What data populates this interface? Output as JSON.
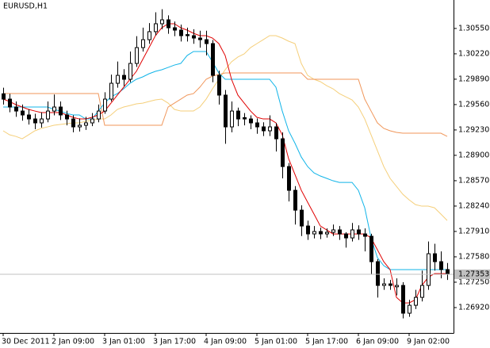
{
  "chart_data": {
    "type": "candlestick",
    "title": "EURUSD,H1",
    "categories": [
      "30 Dec 2011",
      null,
      null,
      null,
      null,
      null,
      null,
      null,
      "2 Jan 09:00",
      null,
      null,
      null,
      null,
      null,
      null,
      null,
      "3 Jan 01:00",
      null,
      null,
      null,
      null,
      null,
      null,
      null,
      "3 Jan 17:00",
      null,
      null,
      null,
      null,
      null,
      null,
      null,
      "4 Jan 09:00",
      null,
      null,
      null,
      null,
      null,
      null,
      null,
      "5 Jan 01:00",
      null,
      null,
      null,
      null,
      null,
      null,
      null,
      "5 Jan 17:00",
      null,
      null,
      null,
      null,
      null,
      null,
      null,
      "6 Jan 09:00",
      null,
      null,
      null,
      null,
      null,
      null,
      null,
      "9 Jan 02:00",
      null,
      null,
      null,
      null,
      null,
      null
    ],
    "ohlc": {
      "open": [
        1.297,
        1.29631,
        1.29528,
        1.29476,
        1.29425,
        1.29373,
        1.29322,
        1.29373,
        1.29476,
        1.29528,
        1.29425,
        1.29373,
        1.2927,
        1.29291,
        1.29322,
        1.29373,
        1.29476,
        1.29631,
        1.29837,
        1.2994,
        1.29889,
        1.30095,
        1.30301,
        1.30404,
        1.30508,
        1.30611,
        1.30662,
        1.30559,
        1.30528,
        1.3047,
        1.30456,
        1.30425,
        1.30404,
        1.30353,
        1.2994,
        1.29683,
        1.2927,
        1.29476,
        1.2939,
        1.29373,
        1.29322,
        1.2927,
        1.29219,
        1.2927,
        1.29115,
        1.28754,
        1.28445,
        1.28187,
        1.27981,
        1.27878,
        1.27909,
        1.27878,
        1.27899,
        1.2793,
        1.27878,
        1.27826,
        1.2793,
        1.27878,
        1.27847,
        1.27517,
        1.27208,
        1.27228,
        1.2719,
        1.27208,
        1.26847,
        1.2695,
        1.27053,
        1.27208,
        1.2762,
        1.27517,
        1.27414
      ],
      "high": [
        1.2978,
        1.297,
        1.296,
        1.2956,
        1.295,
        1.2944,
        1.2946,
        1.296,
        1.2969,
        1.296,
        1.2948,
        1.2942,
        1.2938,
        1.294,
        1.2945,
        1.2956,
        1.2972,
        1.2995,
        1.3012,
        1.3002,
        1.3025,
        1.3045,
        1.3056,
        1.3062,
        1.3076,
        1.308,
        1.3072,
        1.3064,
        1.306,
        1.3056,
        1.3054,
        1.3052,
        1.3052,
        1.304,
        1.3,
        1.2975,
        1.296,
        1.2952,
        1.2945,
        1.2942,
        1.2938,
        1.2933,
        1.2942,
        1.2932,
        1.292,
        1.288,
        1.285,
        1.2825,
        1.2805,
        1.2798,
        1.2796,
        1.2795,
        1.28,
        1.2798,
        1.279,
        1.2802,
        1.2799,
        1.2795,
        1.2788,
        1.2755,
        1.273,
        1.2728,
        1.273,
        1.2725,
        1.2702,
        1.2715,
        1.274,
        1.2778,
        1.2775,
        1.2765,
        1.275
      ],
      "low": [
        1.2956,
        1.2946,
        1.294,
        1.2935,
        1.293,
        1.2924,
        1.2926,
        1.2933,
        1.2942,
        1.2936,
        1.2929,
        1.292,
        1.2921,
        1.2923,
        1.2928,
        1.2933,
        1.2944,
        1.296,
        1.2978,
        1.298,
        1.2985,
        1.3005,
        1.3025,
        1.3035,
        1.3046,
        1.3054,
        1.3048,
        1.3045,
        1.3038,
        1.3038,
        1.3035,
        1.303,
        1.302,
        1.2985,
        1.2956,
        1.2905,
        1.292,
        1.2928,
        1.2929,
        1.2924,
        1.2918,
        1.2915,
        1.2915,
        1.2895,
        1.286,
        1.283,
        1.28,
        1.2785,
        1.278,
        1.2782,
        1.2781,
        1.2783,
        1.2785,
        1.278,
        1.277,
        1.2778,
        1.278,
        1.2765,
        1.2735,
        1.2705,
        1.2715,
        1.2715,
        1.2708,
        1.2678,
        1.268,
        1.269,
        1.27,
        1.2715,
        1.274,
        1.273,
        1.2728
      ],
      "close": [
        1.29631,
        1.29528,
        1.29476,
        1.29425,
        1.29373,
        1.29322,
        1.29373,
        1.29476,
        1.29528,
        1.29425,
        1.29373,
        1.2927,
        1.29291,
        1.29322,
        1.29373,
        1.29476,
        1.29631,
        1.29837,
        1.2994,
        1.29889,
        1.30095,
        1.30301,
        1.30404,
        1.30508,
        1.30611,
        1.30662,
        1.30559,
        1.30528,
        1.30456,
        1.30456,
        1.30425,
        1.30404,
        1.30353,
        1.2994,
        1.29683,
        1.2927,
        1.29476,
        1.29373,
        1.29373,
        1.29322,
        1.2927,
        1.29219,
        1.2927,
        1.29115,
        1.28754,
        1.28445,
        1.28187,
        1.27981,
        1.27878,
        1.27909,
        1.27878,
        1.27899,
        1.2793,
        1.27878,
        1.27826,
        1.2793,
        1.27878,
        1.27847,
        1.27517,
        1.27208,
        1.27228,
        1.27208,
        1.27208,
        1.26847,
        1.2695,
        1.27053,
        1.27208,
        1.2762,
        1.27517,
        1.27414,
        1.27362
      ]
    },
    "up_color": "#ffffff",
    "down_color": "#000000",
    "wick_color": "#000000",
    "overlays": [
      {
        "color": "#f5cf7a",
        "values": [
          1.29219,
          1.29167,
          1.29146,
          1.29115,
          1.29167,
          1.29219,
          1.2925,
          1.2927,
          1.29291,
          1.29301,
          1.29312,
          1.29322,
          1.29322,
          1.29342,
          1.29353,
          1.29373,
          1.29373,
          1.29425,
          1.29497,
          1.29528,
          1.29548,
          1.29569,
          1.29579,
          1.296,
          1.29621,
          1.29631,
          1.29579,
          1.29497,
          1.29476,
          1.29476,
          1.29476,
          1.29528,
          1.29631,
          1.29765,
          1.29889,
          1.30013,
          1.30116,
          1.30178,
          1.30219,
          1.30301,
          1.30353,
          1.30404,
          1.30456,
          1.30456,
          1.30425,
          1.30384,
          1.30353,
          1.30095,
          1.2994,
          1.29889,
          1.29858,
          1.29806,
          1.29765,
          1.29703,
          1.29662,
          1.29621,
          1.29528,
          1.29373,
          1.29167,
          1.28961,
          1.28754,
          1.286,
          1.28497,
          1.28394,
          1.28321,
          1.28259,
          1.28239,
          1.28239,
          1.28218,
          1.28136,
          1.28053
        ]
      },
      {
        "color": "#f0965a",
        "values": [
          1.29703,
          1.29703,
          1.29703,
          1.29703,
          1.29703,
          1.29703,
          1.29703,
          1.29703,
          1.29703,
          1.29703,
          1.29703,
          1.29703,
          1.29703,
          1.29703,
          1.29703,
          1.29703,
          1.29291,
          1.29291,
          1.29291,
          1.29291,
          1.29291,
          1.29291,
          1.29291,
          1.29291,
          1.29291,
          1.29291,
          1.29528,
          1.29579,
          1.29631,
          1.29683,
          1.29703,
          1.29786,
          1.29889,
          1.2993,
          1.29951,
          1.29971,
          1.29971,
          1.29971,
          1.29971,
          1.29971,
          1.29971,
          1.29971,
          1.29971,
          1.29971,
          1.29971,
          1.29971,
          1.29971,
          1.29971,
          1.29889,
          1.29889,
          1.29889,
          1.29889,
          1.29889,
          1.29889,
          1.29889,
          1.29889,
          1.29889,
          1.29631,
          1.29476,
          1.29322,
          1.2925,
          1.29219,
          1.29198,
          1.29188,
          1.29188,
          1.29188,
          1.29188,
          1.29188,
          1.29188,
          1.29188,
          1.29146
        ]
      },
      {
        "color": "#10b4e8",
        "values": [
          1.29528,
          1.29528,
          1.29528,
          1.29528,
          1.29528,
          1.29528,
          1.29528,
          1.29528,
          1.29497,
          1.29476,
          1.29445,
          1.29425,
          1.29425,
          1.29373,
          1.29373,
          1.29476,
          1.29579,
          1.29662,
          1.29703,
          1.29765,
          1.29837,
          1.29889,
          1.2992,
          1.29961,
          1.29992,
          1.30013,
          1.30043,
          1.30074,
          1.30095,
          1.30198,
          1.3025,
          1.3025,
          1.3025,
          1.30116,
          1.29971,
          1.29889,
          1.29889,
          1.29889,
          1.29889,
          1.29889,
          1.29889,
          1.29889,
          1.29889,
          1.29786,
          1.29476,
          1.29219,
          1.29058,
          1.28878,
          1.28754,
          1.28672,
          1.28631,
          1.286,
          1.28569,
          1.28548,
          1.28548,
          1.28548,
          1.28445,
          1.28218,
          1.27826,
          1.27569,
          1.27465,
          1.27414,
          1.27414,
          1.27414,
          1.27414,
          1.27414,
          1.27414,
          1.27414,
          1.27414,
          1.27414,
          1.27414
        ]
      },
      {
        "color": "#e00000",
        "values": [
          1.29631,
          1.296,
          1.29559,
          1.29528,
          1.29497,
          1.29476,
          1.29456,
          1.29456,
          1.29456,
          1.29456,
          1.29425,
          1.29394,
          1.29373,
          1.29373,
          1.29394,
          1.29425,
          1.29476,
          1.29579,
          1.29683,
          1.29786,
          1.29889,
          1.29992,
          1.30147,
          1.30301,
          1.30456,
          1.30559,
          1.30611,
          1.30611,
          1.30559,
          1.30528,
          1.30487,
          1.30456,
          1.30456,
          1.30425,
          1.30353,
          1.30198,
          1.29889,
          1.29683,
          1.29579,
          1.29476,
          1.29394,
          1.29373,
          1.29373,
          1.29322,
          1.29167,
          1.28856,
          1.28651,
          1.28445,
          1.2829,
          1.28136,
          1.27981,
          1.2793,
          1.27878,
          1.27878,
          1.27878,
          1.27878,
          1.27878,
          1.27878,
          1.27826,
          1.27672,
          1.27517,
          1.27414,
          1.27053,
          1.26981,
          1.26981,
          1.27022,
          1.27208,
          1.27311,
          1.27362,
          1.27362,
          1.27362
        ]
      }
    ],
    "last_price": 1.27353,
    "last_price_color": "#c0c0c0",
    "ylim": [
      1.2659,
      1.3092
    ],
    "yticks": [
      {
        "value": 1.3055,
        "label": "1.30550"
      },
      {
        "value": 1.3022,
        "label": "1.30220"
      },
      {
        "value": 1.2989,
        "label": "1.29890"
      },
      {
        "value": 1.2956,
        "label": "1.29560"
      },
      {
        "value": 1.2923,
        "label": "1.29230"
      },
      {
        "value": 1.289,
        "label": "1.28900"
      },
      {
        "value": 1.2857,
        "label": "1.28570"
      },
      {
        "value": 1.2824,
        "label": "1.28240"
      },
      {
        "value": 1.2791,
        "label": "1.27910"
      },
      {
        "value": 1.2758,
        "label": "1.27580"
      },
      {
        "value": 1.2725,
        "label": "1.27250"
      },
      {
        "value": 1.2692,
        "label": "1.26920"
      }
    ],
    "grid": false
  }
}
